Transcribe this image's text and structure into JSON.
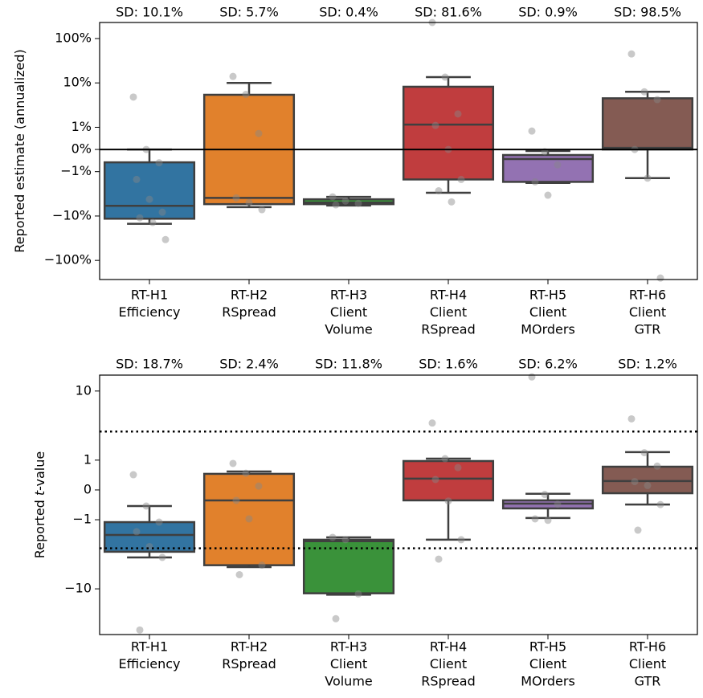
{
  "chart_data": [
    {
      "type": "box",
      "ylabel": [
        "Reported estimate (annualized)"
      ],
      "categories": [
        [
          "RT-H1",
          "Efficiency"
        ],
        [
          "RT-H2",
          "RSpread"
        ],
        [
          "RT-H3",
          "Client",
          "Volume"
        ],
        [
          "RT-H4",
          "Client",
          "RSpread"
        ],
        [
          "RT-H5",
          "Client",
          "MOrders"
        ],
        [
          "RT-H6",
          "Client",
          "GTR"
        ]
      ],
      "annotations": [
        "SD: 10.1%",
        "SD: 5.7%",
        "SD: 0.4%",
        "SD: 81.6%",
        "SD: 0.9%",
        "SD: 98.5%"
      ],
      "colors": [
        "#3274a1",
        "#e1812c",
        "#3a923a",
        "#c03d3e",
        "#9372b2",
        "#845b53"
      ],
      "boxes": [
        {
          "whislo": -15,
          "q1": -11.5,
          "med": -5.9,
          "q3": -0.58,
          "whishi": 0
        },
        {
          "whislo": -6.3,
          "q1": -5.4,
          "med": -3.9,
          "q3": 5.4,
          "whishi": 10
        },
        {
          "whislo": -5.8,
          "q1": -5.4,
          "med": -5,
          "q3": -4.2,
          "whishi": -3.7
        },
        {
          "whislo": -3,
          "q1": -1.5,
          "med": 1.15,
          "q3": 8.2,
          "whishi": 13.5
        },
        {
          "whislo": -1.8,
          "q1": -1.7,
          "med": -0.43,
          "q3": -0.25,
          "whishi": -0.07
        },
        {
          "whislo": -1.4,
          "q1": 0,
          "med": 0.07,
          "q3": 4.5,
          "whishi": 6.3
        }
      ],
      "points": [
        [
          4.8,
          0,
          -0.6,
          -1.5,
          -4.2,
          -8.2,
          -11,
          -14,
          -34
        ],
        [
          14,
          5.5,
          0.72,
          -3.9,
          -5,
          -7.2
        ],
        [
          -3.7,
          -4.6,
          -5.2,
          -5.6
        ],
        [
          230,
          13.5,
          2,
          1.1,
          0,
          -1.5,
          -2.7,
          -4.8
        ],
        [
          0.83,
          -0.1,
          -0.69,
          -1.7,
          -3.4
        ],
        [
          45,
          6.3,
          4.2,
          0,
          -1.4,
          -250
        ]
      ],
      "yscale": "symlog",
      "linthresh": 1,
      "linscale": 0.5,
      "ylim": [
        -270,
        230
      ],
      "yticks": [
        {
          "value": 100,
          "label": "100%"
        },
        {
          "value": 10,
          "label": "10%"
        },
        {
          "value": 1,
          "label": "1%"
        },
        {
          "value": 0,
          "label": "0%"
        },
        {
          "value": -1,
          "label": "−1%"
        },
        {
          "value": -10,
          "label": "−10%"
        },
        {
          "value": -100,
          "label": "−100%"
        }
      ],
      "hlines": [
        {
          "value": 0,
          "style": "solid"
        }
      ]
    },
    {
      "type": "box",
      "ylabel": [
        "Reported ",
        "t",
        "-value"
      ],
      "categories": [
        [
          "RT-H1",
          "Efficiency"
        ],
        [
          "RT-H2",
          "RSpread"
        ],
        [
          "RT-H3",
          "Client",
          "Volume"
        ],
        [
          "RT-H4",
          "Client",
          "RSpread"
        ],
        [
          "RT-H5",
          "Client",
          "MOrders"
        ],
        [
          "RT-H6",
          "Client",
          "GTR"
        ]
      ],
      "annotations": [
        "SD: 18.7%",
        "SD: 2.4%",
        "SD: 11.8%",
        "SD: 1.6%",
        "SD: 6.2%",
        "SD: 1.2%"
      ],
      "colors": [
        "#3274a1",
        "#e1812c",
        "#3a923a",
        "#c03d3e",
        "#9372b2",
        "#845b53"
      ],
      "boxes": [
        {
          "whislo": -2.76,
          "q1": -2.19,
          "med": -1.51,
          "q3": -1.08,
          "whishi": -0.54
        },
        {
          "whislo": -4.1,
          "q1": -3.8,
          "med": -0.35,
          "q3": 0.54,
          "whishi": 0.62
        },
        {
          "whislo": -12.7,
          "q1": -12,
          "med": -1.72,
          "q3": -1.67,
          "whishi": -1.59
        },
        {
          "whislo": -1.67,
          "q1": -0.35,
          "med": 0.38,
          "q3": 0.97,
          "whishi": 1.05
        },
        {
          "whislo": -0.94,
          "q1": -0.62,
          "med": -0.46,
          "q3": -0.35,
          "whishi": -0.13
        },
        {
          "whislo": -0.49,
          "q1": -0.11,
          "med": 0.3,
          "q3": 0.78,
          "whishi": 1.27
        }
      ],
      "points": [
        [
          0.51,
          -0.54,
          -1.08,
          -1.4,
          -1.9,
          -2.76,
          -54
        ],
        [
          0.89,
          0.56,
          0.13,
          -0.35,
          -0.97,
          -3.8,
          -5.6
        ],
        [
          -1.59,
          -1.67,
          -12.3,
          -34
        ],
        [
          2.7,
          1.05,
          0.75,
          0.35,
          -0.37,
          -1.67,
          -2.96
        ],
        [
          17.8,
          -0.15,
          -0.48,
          -0.97,
          -1.02
        ],
        [
          3.2,
          1.25,
          0.8,
          0.28,
          0.15,
          -0.49,
          -1.35
        ]
      ],
      "yscale": "symlog",
      "linthresh": 2,
      "linscale": 1.06,
      "ylim": [
        -65,
        19.2
      ],
      "yticks": [
        10,
        1,
        0,
        {
          "value": -1,
          "label": "−1"
        },
        {
          "value": -10,
          "label": "−10"
        }
      ],
      "hlines": [
        {
          "value": 1.96,
          "style": "dotted"
        },
        {
          "value": -1.96,
          "style": "dotted"
        }
      ]
    }
  ]
}
